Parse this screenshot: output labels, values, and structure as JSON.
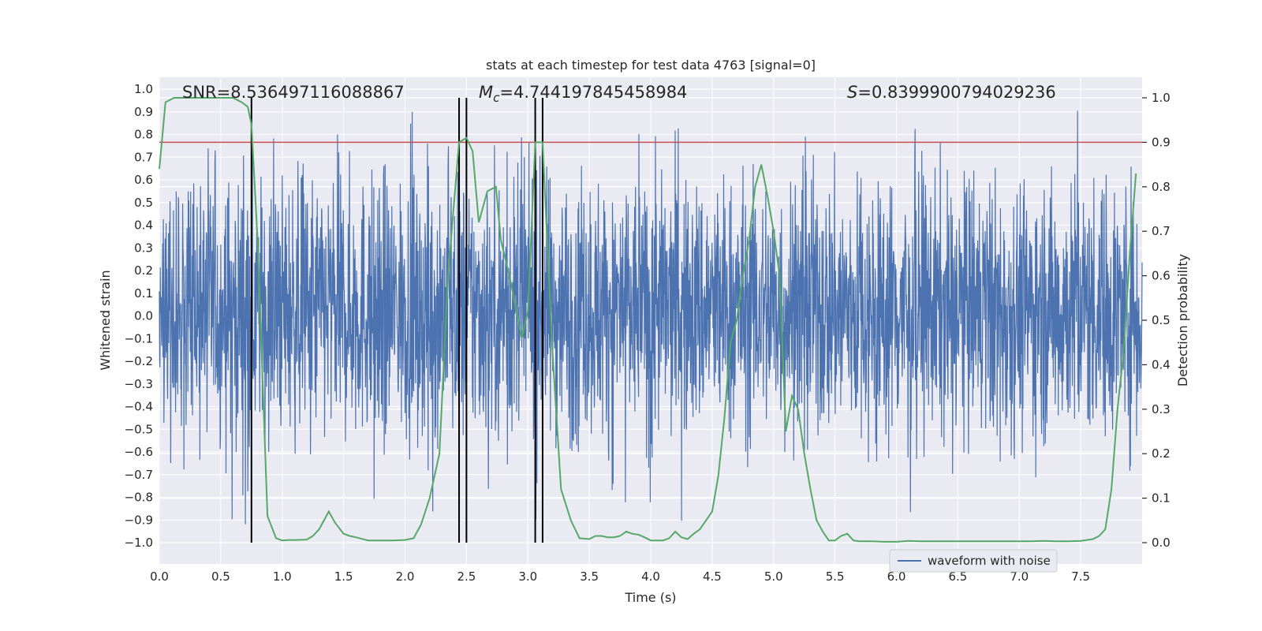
{
  "chart_data": {
    "type": "line",
    "title": "stats at each timestep for test data 4763 [signal=0]",
    "xlabel": "Time (s)",
    "ylabel_left": "Whitened strain",
    "ylabel_right": "Detection probability",
    "xlim": [
      0.0,
      8.0
    ],
    "ylim_left": [
      -1.0,
      1.0
    ],
    "ylim_right": [
      0.0,
      1.0
    ],
    "x_ticks": [
      0.0,
      0.5,
      1.0,
      1.5,
      2.0,
      2.5,
      3.0,
      3.5,
      4.0,
      4.5,
      5.0,
      5.5,
      6.0,
      6.5,
      7.0,
      7.5
    ],
    "x_tick_labels": [
      "0.0",
      "0.5",
      "1.0",
      "1.5",
      "2.0",
      "2.5",
      "3.0",
      "3.5",
      "4.0",
      "4.5",
      "5.0",
      "5.5",
      "6.0",
      "6.5",
      "7.0",
      "7.5"
    ],
    "y_left_ticks": [
      1.0,
      0.9,
      0.8,
      0.7,
      0.6,
      0.5,
      0.4,
      0.3,
      0.2,
      0.1,
      0.0,
      -0.1,
      -0.2,
      -0.3,
      -0.4,
      -0.5,
      -0.6,
      -0.7,
      -0.8,
      -0.9,
      -1.0
    ],
    "y_left_tick_labels": [
      "1.0",
      "0.9",
      "0.8",
      "0.7",
      "0.6",
      "0.5",
      "0.4",
      "0.3",
      "0.2",
      "0.1",
      "0.0",
      "−0.1",
      "−0.2",
      "−0.3",
      "−0.4",
      "−0.5",
      "−0.6",
      "−0.7",
      "−0.8",
      "−0.9",
      "−1.0"
    ],
    "y_right_ticks": [
      1.0,
      0.9,
      0.8,
      0.7,
      0.6,
      0.5,
      0.4,
      0.3,
      0.2,
      0.1,
      0.0
    ],
    "y_right_tick_labels": [
      "1.0",
      "0.9",
      "0.8",
      "0.7",
      "0.6",
      "0.5",
      "0.4",
      "0.3",
      "0.2",
      "0.1",
      "0.0"
    ],
    "annotations": {
      "snr_label": "SNR=8.536497116088867",
      "mc_symbol": "M",
      "mc_subscript": "c",
      "mc_value": "=4.744197845458984",
      "s_symbol": "S",
      "s_value": "=0.8399900794029236"
    },
    "threshold": 0.9,
    "vertical_markers": [
      0.75,
      2.44,
      2.5,
      3.06,
      3.12
    ],
    "series": [
      {
        "name": "waveform with noise",
        "axis": "left",
        "color": "#4c72b0",
        "description_values": {
          "x_start": 0.0,
          "x_end": 8.0,
          "typical_range": [
            -0.45,
            0.5
          ],
          "peak_max": 0.96,
          "peak_min": -0.99
        }
      },
      {
        "name": "detection probability",
        "axis": "right",
        "color": "#55a868",
        "x": [
          0.0,
          0.05,
          0.12,
          0.2,
          0.3,
          0.4,
          0.5,
          0.6,
          0.67,
          0.72,
          0.75,
          0.8,
          0.88,
          0.95,
          1.0,
          1.05,
          1.1,
          1.2,
          1.25,
          1.3,
          1.38,
          1.43,
          1.5,
          1.55,
          1.6,
          1.7,
          1.8,
          1.9,
          2.0,
          2.07,
          2.13,
          2.2,
          2.28,
          2.35,
          2.44,
          2.5,
          2.55,
          2.6,
          2.67,
          2.74,
          2.78,
          2.85,
          2.95,
          3.0,
          3.06,
          3.12,
          3.2,
          3.27,
          3.35,
          3.42,
          3.5,
          3.55,
          3.6,
          3.65,
          3.7,
          3.75,
          3.8,
          3.85,
          3.9,
          3.95,
          4.0,
          4.05,
          4.1,
          4.15,
          4.2,
          4.25,
          4.3,
          4.35,
          4.4,
          4.45,
          4.5,
          4.55,
          4.6,
          4.65,
          4.7,
          4.75,
          4.8,
          4.85,
          4.9,
          4.95,
          5.0,
          5.05,
          5.1,
          5.15,
          5.2,
          5.25,
          5.3,
          5.35,
          5.4,
          5.45,
          5.5,
          5.55,
          5.6,
          5.65,
          5.7,
          5.8,
          5.9,
          6.0,
          6.1,
          6.2,
          6.3,
          6.4,
          6.5,
          6.6,
          6.7,
          6.8,
          6.9,
          7.0,
          7.1,
          7.2,
          7.3,
          7.4,
          7.5,
          7.6,
          7.65,
          7.7,
          7.75,
          7.8,
          7.85,
          7.9,
          7.95
        ],
        "y": [
          0.84,
          0.99,
          1.0,
          1.0,
          1.0,
          1.0,
          1.0,
          1.0,
          0.99,
          0.98,
          0.94,
          0.68,
          0.06,
          0.01,
          0.005,
          0.006,
          0.006,
          0.007,
          0.015,
          0.03,
          0.07,
          0.045,
          0.02,
          0.015,
          0.012,
          0.005,
          0.005,
          0.005,
          0.006,
          0.01,
          0.04,
          0.1,
          0.2,
          0.6,
          0.9,
          0.91,
          0.88,
          0.72,
          0.79,
          0.8,
          0.68,
          0.6,
          0.46,
          0.52,
          0.9,
          0.9,
          0.43,
          0.12,
          0.05,
          0.01,
          0.008,
          0.015,
          0.015,
          0.012,
          0.012,
          0.015,
          0.025,
          0.02,
          0.018,
          0.012,
          0.005,
          0.005,
          0.005,
          0.01,
          0.025,
          0.012,
          0.008,
          0.02,
          0.03,
          0.05,
          0.07,
          0.15,
          0.28,
          0.45,
          0.5,
          0.6,
          0.68,
          0.8,
          0.85,
          0.78,
          0.7,
          0.6,
          0.25,
          0.33,
          0.3,
          0.2,
          0.12,
          0.05,
          0.025,
          0.005,
          0.005,
          0.015,
          0.02,
          0.005,
          0.003,
          0.003,
          0.002,
          0.002,
          0.004,
          0.003,
          0.003,
          0.003,
          0.003,
          0.003,
          0.003,
          0.003,
          0.003,
          0.003,
          0.003,
          0.004,
          0.003,
          0.003,
          0.004,
          0.008,
          0.015,
          0.03,
          0.12,
          0.3,
          0.43,
          0.65,
          0.83
        ]
      }
    ],
    "legend": {
      "placement": "bottom-right",
      "entries": [
        "waveform with noise"
      ]
    }
  }
}
